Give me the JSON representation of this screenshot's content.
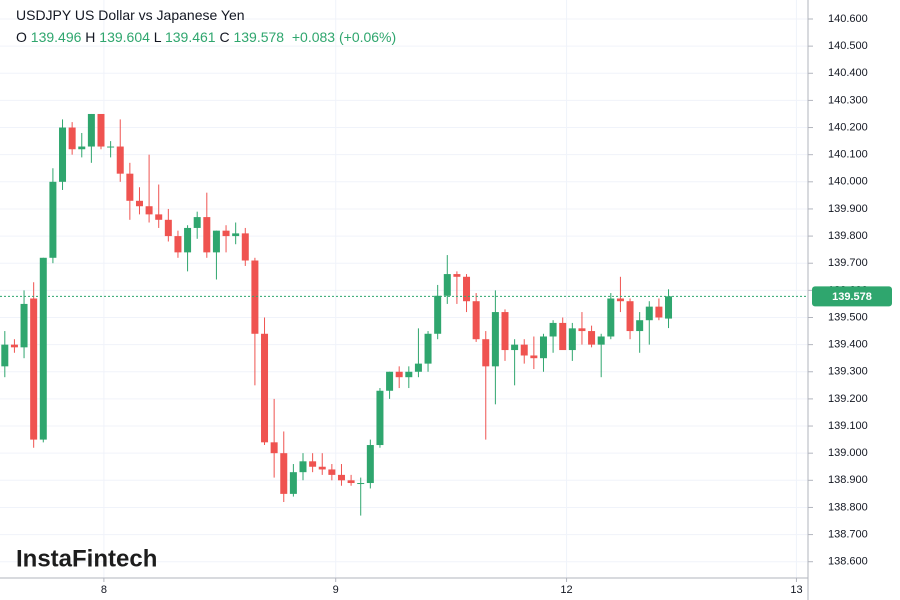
{
  "chart_data": {
    "type": "candlestick",
    "title": "USDJPY US Dollar vs Japanese Yen",
    "ohlc": {
      "o_label": "O",
      "open": 139.496,
      "h_label": "H",
      "high": 139.604,
      "l_label": "L",
      "low": 139.461,
      "c_label": "C",
      "close": 139.578
    },
    "change": "+0.083 (+0.06%)",
    "watermark": "InstaFintech",
    "up_color": "#2fa66e",
    "down_color": "#ef5350",
    "open": [
      139.32,
      139.4,
      139.39,
      139.57,
      139.05,
      139.72,
      140.0,
      140.2,
      140.12,
      140.13,
      140.25,
      140.13,
      140.13,
      140.03,
      139.93,
      139.91,
      139.88,
      139.86,
      139.8,
      139.74,
      139.83,
      139.87,
      139.74,
      139.82,
      139.8,
      139.81,
      139.71,
      139.44,
      139.04,
      139.0,
      138.85,
      138.93,
      138.97,
      138.95,
      138.94,
      138.92,
      138.9,
      138.89,
      138.89,
      139.03,
      139.23,
      139.3,
      139.28,
      139.3,
      139.33,
      139.44,
      139.58,
      139.66,
      139.65,
      139.56,
      139.42,
      139.32,
      139.52,
      139.38,
      139.4,
      139.36,
      139.35,
      139.43,
      139.48,
      139.38,
      139.46,
      139.45,
      139.4,
      139.43,
      139.57,
      139.56,
      139.45,
      139.49,
      139.54,
      139.496
    ],
    "high": [
      139.45,
      139.42,
      139.6,
      139.63,
      139.72,
      140.05,
      140.23,
      140.22,
      140.18,
      140.25,
      140.25,
      140.15,
      140.23,
      140.07,
      139.98,
      140.1,
      139.99,
      139.9,
      139.82,
      139.84,
      139.89,
      139.96,
      139.82,
      139.84,
      139.85,
      139.83,
      139.72,
      139.5,
      139.2,
      139.08,
      138.96,
      139.0,
      139.0,
      139.0,
      138.96,
      138.96,
      138.92,
      138.91,
      139.05,
      139.24,
      139.3,
      139.32,
      139.32,
      139.46,
      139.45,
      139.62,
      139.73,
      139.67,
      139.66,
      139.59,
      139.45,
      139.6,
      139.53,
      139.42,
      139.42,
      139.43,
      139.44,
      139.49,
      139.5,
      139.48,
      139.52,
      139.47,
      139.44,
      139.59,
      139.65,
      139.57,
      139.52,
      139.56,
      139.57,
      139.604
    ],
    "low": [
      139.28,
      139.37,
      139.35,
      139.02,
      139.04,
      139.7,
      139.97,
      140.1,
      140.09,
      140.07,
      140.12,
      140.09,
      140.0,
      139.86,
      139.88,
      139.85,
      139.83,
      139.78,
      139.72,
      139.67,
      139.79,
      139.72,
      139.64,
      139.74,
      139.77,
      139.69,
      139.25,
      139.03,
      138.91,
      138.82,
      138.84,
      138.9,
      138.93,
      138.92,
      138.9,
      138.88,
      138.88,
      138.77,
      138.87,
      139.02,
      139.2,
      139.24,
      139.24,
      139.28,
      139.3,
      139.42,
      139.55,
      139.55,
      139.52,
      139.41,
      139.05,
      139.18,
      139.34,
      139.25,
      139.33,
      139.31,
      139.3,
      139.37,
      139.4,
      139.34,
      139.4,
      139.39,
      139.28,
      139.42,
      139.52,
      139.42,
      139.37,
      139.4,
      139.49,
      139.461
    ],
    "close": [
      139.4,
      139.39,
      139.55,
      139.05,
      139.72,
      140.0,
      140.2,
      140.12,
      140.13,
      140.25,
      140.13,
      140.13,
      140.03,
      139.93,
      139.91,
      139.88,
      139.86,
      139.8,
      139.74,
      139.83,
      139.87,
      139.74,
      139.82,
      139.8,
      139.81,
      139.71,
      139.44,
      139.04,
      139.0,
      138.85,
      138.93,
      138.97,
      138.95,
      138.94,
      138.92,
      138.9,
      138.89,
      138.89,
      139.03,
      139.23,
      139.3,
      139.28,
      139.3,
      139.33,
      139.44,
      139.58,
      139.66,
      139.65,
      139.56,
      139.42,
      139.32,
      139.52,
      139.38,
      139.4,
      139.36,
      139.35,
      139.43,
      139.48,
      139.38,
      139.46,
      139.45,
      139.4,
      139.43,
      139.57,
      139.56,
      139.45,
      139.49,
      139.54,
      139.5,
      139.578
    ],
    "xlim": [
      0,
      84
    ],
    "xticks": [
      {
        "value": 10.8,
        "label": "8"
      },
      {
        "value": 34.9,
        "label": "9"
      },
      {
        "value": 58.9,
        "label": "12"
      },
      {
        "value": 82.8,
        "label": "13"
      }
    ],
    "ylim": [
      138.54,
      140.67
    ],
    "yticks": [
      {
        "value": 138.6,
        "label": "138.600"
      },
      {
        "value": 138.7,
        "label": "138.700"
      },
      {
        "value": 138.8,
        "label": "138.800"
      },
      {
        "value": 138.9,
        "label": "138.900"
      },
      {
        "value": 139.0,
        "label": "139.000"
      },
      {
        "value": 139.1,
        "label": "139.100"
      },
      {
        "value": 139.2,
        "label": "139.200"
      },
      {
        "value": 139.3,
        "label": "139.300"
      },
      {
        "value": 139.4,
        "label": "139.400"
      },
      {
        "value": 139.5,
        "label": "139.500"
      },
      {
        "value": 139.6,
        "label": "139.600"
      },
      {
        "value": 139.7,
        "label": "139.700"
      },
      {
        "value": 139.8,
        "label": "139.800"
      },
      {
        "value": 139.9,
        "label": "139.900"
      },
      {
        "value": 140.0,
        "label": "140.000"
      },
      {
        "value": 140.1,
        "label": "140.100"
      },
      {
        "value": 140.2,
        "label": "140.200"
      },
      {
        "value": 140.3,
        "label": "140.300"
      },
      {
        "value": 140.4,
        "label": "140.400"
      },
      {
        "value": 140.5,
        "label": "140.500"
      },
      {
        "value": 140.6,
        "label": "140.600"
      }
    ],
    "grid": true,
    "last_price": {
      "value": 139.578,
      "label": "139.578"
    }
  }
}
